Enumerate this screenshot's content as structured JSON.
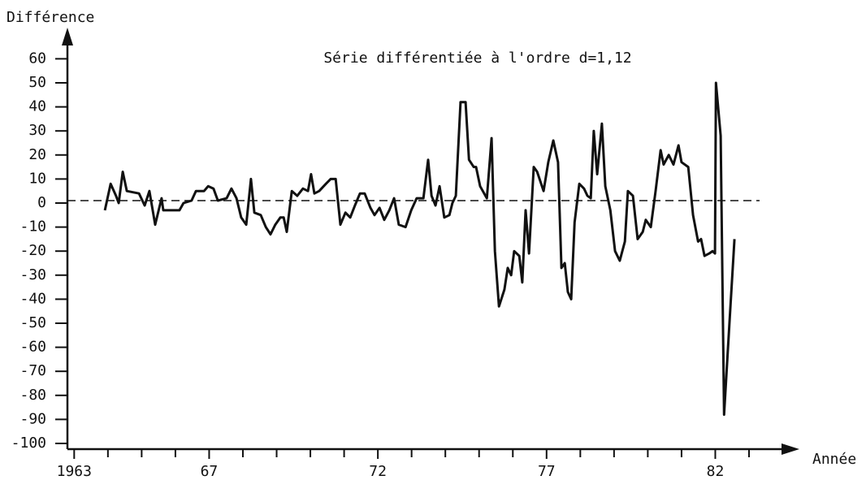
{
  "chart_data": {
    "type": "line",
    "title": "Série différentiée à l'ordre d=1,12",
    "y_label": "Différence",
    "x_label": "Année",
    "x": [
      1963.91,
      1964.08,
      1964.24,
      1964.32,
      1964.44,
      1964.56,
      1964.92,
      1965.09,
      1965.23,
      1965.4,
      1965.59,
      1965.64,
      1966.12,
      1966.24,
      1966.48,
      1966.61,
      1966.85,
      1966.97,
      1967.13,
      1967.26,
      1967.52,
      1967.66,
      1967.81,
      1967.95,
      1968.1,
      1968.24,
      1968.34,
      1968.53,
      1968.68,
      1968.82,
      1968.96,
      1969.11,
      1969.21,
      1969.3,
      1969.45,
      1969.61,
      1969.78,
      1969.93,
      1970.02,
      1970.12,
      1970.26,
      1970.46,
      1970.6,
      1970.75,
      1970.89,
      1971.04,
      1971.18,
      1971.32,
      1971.47,
      1971.61,
      1971.78,
      1971.9,
      1972.05,
      1972.19,
      1972.34,
      1972.48,
      1972.62,
      1972.82,
      1972.99,
      1973.15,
      1973.35,
      1973.49,
      1973.59,
      1973.71,
      1973.83,
      1973.97,
      1974.12,
      1974.21,
      1974.31,
      1974.45,
      1974.6,
      1974.7,
      1974.84,
      1974.91,
      1975.03,
      1975.23,
      1975.37,
      1975.47,
      1975.59,
      1975.75,
      1975.85,
      1975.95,
      1976.04,
      1976.19,
      1976.28,
      1976.38,
      1976.48,
      1976.62,
      1976.72,
      1976.91,
      1977.05,
      1977.2,
      1977.34,
      1977.44,
      1977.54,
      1977.63,
      1977.73,
      1977.83,
      1977.97,
      1978.11,
      1978.21,
      1978.31,
      1978.4,
      1978.5,
      1978.64,
      1978.74,
      1978.89,
      1979.03,
      1979.17,
      1979.32,
      1979.41,
      1979.56,
      1979.7,
      1979.85,
      1979.94,
      1980.09,
      1980.23,
      1980.38,
      1980.47,
      1980.62,
      1980.76,
      1980.91,
      1981.0,
      1981.2,
      1981.34,
      1981.49,
      1981.58,
      1981.68,
      1981.82,
      1981.92,
      1981.99,
      1982.02,
      1982.16,
      1982.26,
      1982.42,
      1982.57
    ],
    "values": [
      -3,
      8,
      3,
      0,
      13,
      5,
      4,
      -1,
      5,
      -9,
      2,
      -3,
      -3,
      0,
      1,
      5,
      5,
      7,
      6,
      1,
      2,
      6,
      2,
      -6,
      -9,
      10,
      -4,
      -5,
      -10,
      -13,
      -9,
      -6,
      -6,
      -12,
      5,
      3,
      6,
      5,
      12,
      4,
      5,
      8,
      10,
      10,
      -9,
      -4,
      -6,
      -1,
      4,
      4,
      -2,
      -5,
      -2,
      -7,
      -3,
      2,
      -9,
      -10,
      -3,
      2,
      2,
      18,
      3,
      -1,
      7,
      -6,
      -5,
      0,
      3,
      42,
      42,
      18,
      15,
      15,
      7,
      2,
      27,
      -20,
      -43,
      -36,
      -27,
      -30,
      -20,
      -22,
      -33,
      -3,
      -21,
      15,
      13,
      5,
      17,
      26,
      17,
      -27,
      -25,
      -37,
      -40,
      -8,
      8,
      6,
      3,
      2,
      30,
      12,
      33,
      7,
      -3,
      -20,
      -24,
      -16,
      5,
      3,
      -15,
      -12,
      -7,
      -10,
      5,
      22,
      16,
      20,
      16,
      24,
      17,
      15,
      -5,
      -16,
      -15,
      -22,
      -21,
      -20,
      -21,
      50,
      28,
      -88,
      -50,
      -15
    ],
    "color": "#111111",
    "hline": 1,
    "xlim": [
      1962.8,
      1984.3
    ],
    "xticks": [
      1963,
      {
        "value": 1967,
        "label": "67"
      },
      {
        "value": 1972,
        "label": "72"
      },
      {
        "value": 1977,
        "label": "77"
      },
      {
        "value": 1982,
        "label": "82"
      }
    ],
    "xminorticks": [
      1964,
      1965,
      1966,
      1968,
      1969,
      1970,
      1971,
      1973,
      1974,
      1975,
      1976,
      1978,
      1979,
      1980,
      1981,
      1983
    ],
    "ylim": [
      -102,
      70
    ],
    "yticks": [
      60,
      50,
      40,
      30,
      20,
      10,
      0,
      -10,
      -20,
      -30,
      -40,
      -50,
      -60,
      -70,
      -80,
      -90,
      -100
    ]
  }
}
